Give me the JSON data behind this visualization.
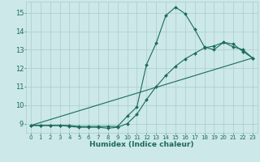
{
  "xlabel": "Humidex (Indice chaleur)",
  "bg_color": "#cce8e8",
  "grid_color": "#aacccc",
  "line_color": "#1a6b5a",
  "xlim": [
    -0.5,
    23.5
  ],
  "ylim": [
    8.5,
    15.6
  ],
  "xticks": [
    0,
    1,
    2,
    3,
    4,
    5,
    6,
    7,
    8,
    9,
    10,
    11,
    12,
    13,
    14,
    15,
    16,
    17,
    18,
    19,
    20,
    21,
    22,
    23
  ],
  "yticks": [
    9,
    10,
    11,
    12,
    13,
    14,
    15
  ],
  "line1_x": [
    0,
    1,
    2,
    3,
    4,
    5,
    6,
    7,
    8,
    9,
    10,
    11,
    12,
    13,
    14,
    15,
    16,
    17,
    18,
    19,
    20,
    21,
    22,
    23
  ],
  "line1_y": [
    8.9,
    8.9,
    8.9,
    8.9,
    8.9,
    8.85,
    8.85,
    8.85,
    8.85,
    8.85,
    9.4,
    9.9,
    12.2,
    13.35,
    14.85,
    15.3,
    14.95,
    14.1,
    13.15,
    13.0,
    13.4,
    13.15,
    13.0,
    12.55
  ],
  "line2_x": [
    0,
    1,
    2,
    3,
    4,
    5,
    6,
    7,
    8,
    9,
    10,
    11,
    12,
    13,
    14,
    15,
    16,
    17,
    18,
    19,
    20,
    21,
    22,
    23
  ],
  "line2_y": [
    8.9,
    8.9,
    8.9,
    8.9,
    8.85,
    8.8,
    8.8,
    8.8,
    8.75,
    8.8,
    9.0,
    9.5,
    10.3,
    11.0,
    11.6,
    12.1,
    12.5,
    12.8,
    13.1,
    13.2,
    13.4,
    13.3,
    12.9,
    12.55
  ],
  "line3_x": [
    0,
    23
  ],
  "line3_y": [
    8.9,
    12.55
  ],
  "tick_fontsize": 5,
  "xlabel_fontsize": 6.5,
  "marker_size": 2,
  "linewidth": 0.8
}
